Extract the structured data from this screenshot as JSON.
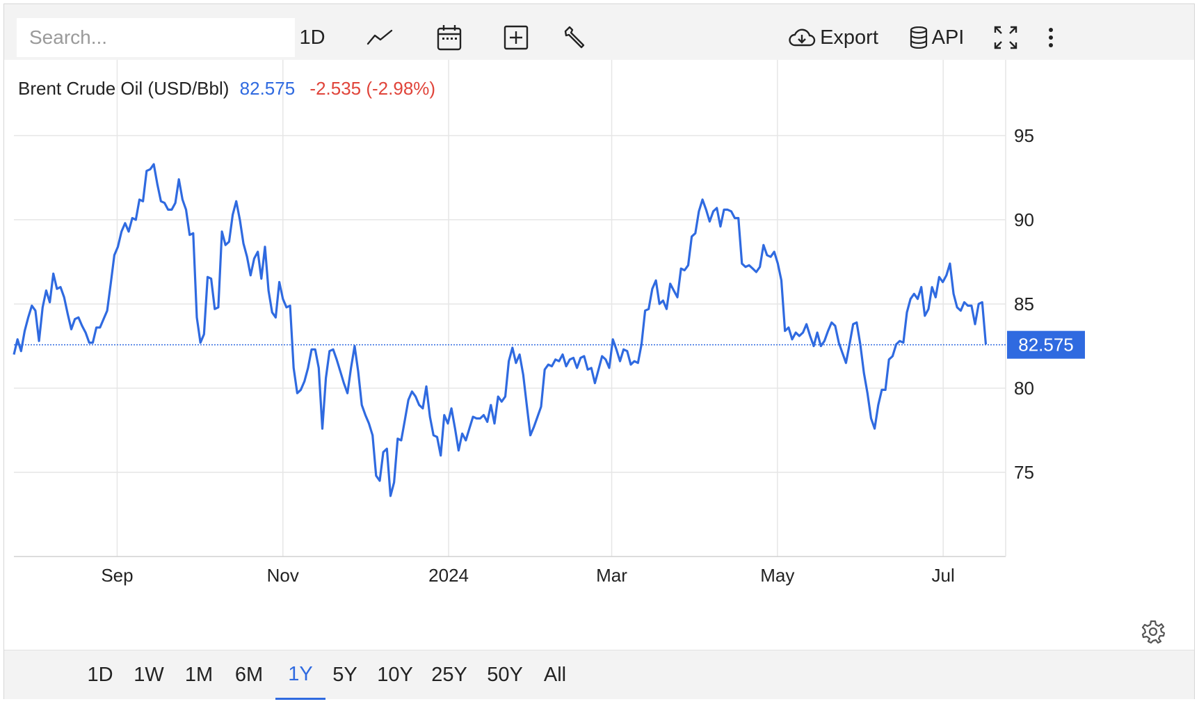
{
  "toolbar": {
    "search_placeholder": "Search...",
    "interval_label": "1D",
    "export_label": "Export",
    "api_label": "API",
    "icons": [
      "line-chart-icon",
      "calendar-icon",
      "add-box-icon",
      "wrench-icon",
      "cloud-download-icon",
      "database-icon",
      "fullscreen-icon",
      "more-vert-icon"
    ]
  },
  "legend": {
    "instrument": "Brent Crude Oil (USD/Bbl)",
    "price": "82.575",
    "change": "-2.535 (-2.98%)"
  },
  "colors": {
    "line": "#2f6ae0",
    "negative": "#e0443a",
    "grid": "#e6e6e6",
    "toolbar_bg": "#f3f3f3"
  },
  "chart_data": {
    "type": "line",
    "series": [
      {
        "name": "Brent Crude Oil (USD/Bbl)",
        "values": [
          82.0,
          82.9,
          82.2,
          83.4,
          84.2,
          84.9,
          84.6,
          82.8,
          84.8,
          85.8,
          85.1,
          86.8,
          85.9,
          86.0,
          85.4,
          84.4,
          83.5,
          84.1,
          84.2,
          83.7,
          83.3,
          82.7,
          82.7,
          83.6,
          83.6,
          84.1,
          84.6,
          86.2,
          87.9,
          88.4,
          89.3,
          89.8,
          89.3,
          90.1,
          90.0,
          91.2,
          91.1,
          92.9,
          93.0,
          93.3,
          92.1,
          91.1,
          91.0,
          90.6,
          90.6,
          91.0,
          92.4,
          91.2,
          90.6,
          89.1,
          89.2,
          84.2,
          82.7,
          83.2,
          86.6,
          86.5,
          84.7,
          84.8,
          89.3,
          88.5,
          88.7,
          90.3,
          91.1,
          90.0,
          88.6,
          87.8,
          86.7,
          87.7,
          88.1,
          86.5,
          88.4,
          85.8,
          84.5,
          84.2,
          86.3,
          85.3,
          84.8,
          84.9,
          81.2,
          79.7,
          79.9,
          80.4,
          81.2,
          82.3,
          82.3,
          81.2,
          77.6,
          80.6,
          82.2,
          82.3,
          81.7,
          81.0,
          80.3,
          79.7,
          81.2,
          82.5,
          81.0,
          79.0,
          78.4,
          77.9,
          77.2,
          74.8,
          74.5,
          76.2,
          76.4,
          73.6,
          74.4,
          77.0,
          76.9,
          78.1,
          79.3,
          79.8,
          79.5,
          79.0,
          78.8,
          80.1,
          78.3,
          77.2,
          77.1,
          76.0,
          78.4,
          77.9,
          78.8,
          77.6,
          76.3,
          77.3,
          76.9,
          77.6,
          78.3,
          78.2,
          78.2,
          78.4,
          78.0,
          79.0,
          77.9,
          79.5,
          79.2,
          79.5,
          81.6,
          82.4,
          81.5,
          82.0,
          80.8,
          79.0,
          77.2,
          77.7,
          78.3,
          78.9,
          81.1,
          81.4,
          81.3,
          81.7,
          81.6,
          82.0,
          81.3,
          81.7,
          81.8,
          81.2,
          81.8,
          81.9,
          81.1,
          81.2,
          80.3,
          81.1,
          81.9,
          81.7,
          81.2,
          82.9,
          82.3,
          81.6,
          82.3,
          82.2,
          81.4,
          81.6,
          81.5,
          82.6,
          84.6,
          84.7,
          85.9,
          86.4,
          85.0,
          85.2,
          84.7,
          86.2,
          85.8,
          85.4,
          87.1,
          87.0,
          87.3,
          89.0,
          89.2,
          90.5,
          91.2,
          90.6,
          89.9,
          90.5,
          90.7,
          89.6,
          90.6,
          90.6,
          90.5,
          90.1,
          90.1,
          87.4,
          87.2,
          87.3,
          87.1,
          86.9,
          87.2,
          88.5,
          87.9,
          87.8,
          88.1,
          87.4,
          86.4,
          83.4,
          83.6,
          82.9,
          83.3,
          83.1,
          83.3,
          83.8,
          83.1,
          82.5,
          83.3,
          82.5,
          82.8,
          83.4,
          83.9,
          83.7,
          82.7,
          82.1,
          81.5,
          82.6,
          83.8,
          83.9,
          82.6,
          80.9,
          79.7,
          78.2,
          77.6,
          79.0,
          79.9,
          79.9,
          81.7,
          81.9,
          82.6,
          82.8,
          82.7,
          84.5,
          85.3,
          85.6,
          85.3,
          86.0,
          84.3,
          84.7,
          86.0,
          85.4,
          86.6,
          86.3,
          86.7,
          87.4,
          85.6,
          84.8,
          84.6,
          85.1,
          84.9,
          84.9,
          83.8,
          85.0,
          85.1,
          82.6
        ]
      }
    ],
    "x_tick_labels": [
      "Sep",
      "Nov",
      "2024",
      "Mar",
      "May",
      "Jul"
    ],
    "x_tick_dates": [
      "2023-09-01",
      "2023-11-01",
      "2024-01-01",
      "2024-03-01",
      "2024-05-01",
      "2024-07-01"
    ],
    "x_range": [
      "2023-07-25",
      "2024-07-24"
    ],
    "y_ticks": [
      75,
      80,
      85,
      90,
      95
    ],
    "ylim": [
      70,
      99.5
    ],
    "last_value": 82.575,
    "last_value_label": "82.575",
    "grid": true,
    "axis_position": "right"
  },
  "ranges": {
    "items": [
      "1D",
      "1W",
      "1M",
      "6M",
      "1Y",
      "5Y",
      "10Y",
      "25Y",
      "50Y",
      "All"
    ],
    "active": "1Y"
  }
}
